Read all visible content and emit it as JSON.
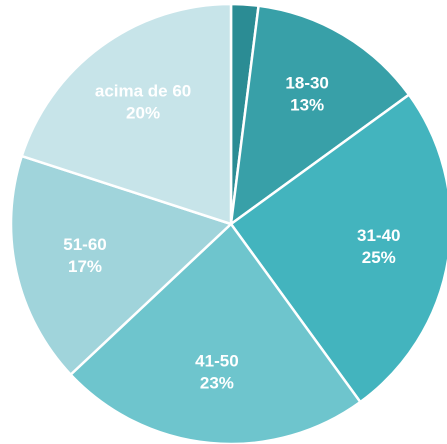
{
  "chart_data": {
    "type": "pie",
    "categories": [
      null,
      "18-30",
      "31-40",
      "41-50",
      "51-60",
      "acima de 60"
    ],
    "values": [
      2,
      13,
      25,
      23,
      17,
      20
    ],
    "value_labels": [
      null,
      "13%",
      "25%",
      "23%",
      "17%",
      "20%"
    ],
    "colors": [
      "#2b8c94",
      "#38a0a8",
      "#43b4be",
      "#6ec5cd",
      "#a0d4db",
      "#c7e4e9"
    ]
  }
}
